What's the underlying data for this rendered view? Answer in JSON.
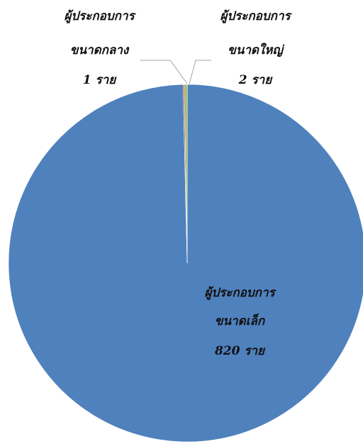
{
  "chart_data": {
    "type": "pie",
    "title": "",
    "categories": [
      "ผู้ประกอบการ ขนาดเล็ก",
      "ผู้ประกอบการ ขนาดกลาง",
      "ผู้ประกอบการ ขนาดใหญ่"
    ],
    "values": [
      820,
      1,
      2
    ],
    "colors": [
      "#4f81bd",
      "#c0504d",
      "#9bbb59"
    ],
    "legend": "none",
    "data_labels": [
      {
        "line1": "ผู้ประกอบการ",
        "line2": "ขนาดเล็ก",
        "line3": "820 ราย"
      },
      {
        "line1": "ผู้ประกอบการ",
        "line2": "ขนาดกลาง",
        "line3": "1 ราย"
      },
      {
        "line1": "ผู้ประกอบการ",
        "line2": "ขนาดใหญ่",
        "line3": "2 ราย"
      }
    ]
  }
}
